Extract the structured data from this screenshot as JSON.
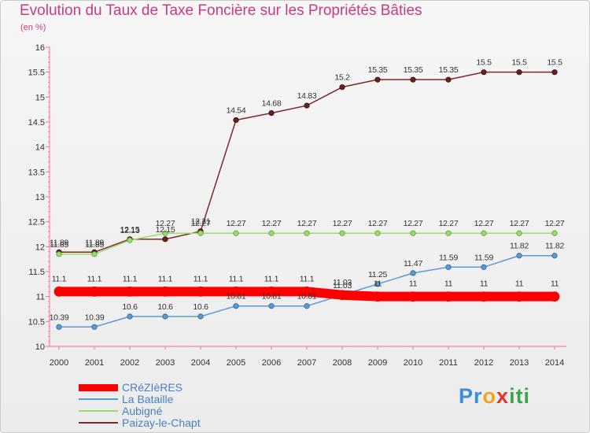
{
  "chart_data": {
    "type": "line",
    "title": "Evolution du Taux de Taxe Foncière sur les Propriétés Bâties",
    "ylabel": "(en %)",
    "xlabel": "",
    "x": [
      "2000",
      "2001",
      "2002",
      "2003",
      "2004",
      "2005",
      "2006",
      "2007",
      "2008",
      "2009",
      "2010",
      "2011",
      "2012",
      "2013",
      "2014"
    ],
    "ylim": [
      10,
      16
    ],
    "yticks": [
      "10",
      "10.5",
      "11",
      "11.5",
      "12",
      "12.5",
      "13",
      "13.5",
      "14",
      "14.5",
      "15",
      "15.5",
      "16"
    ],
    "grid": false,
    "legend_position": "bottom-left",
    "series": [
      {
        "name": "CRéZIèRES",
        "color": "#ff0000",
        "values": [
          11.1,
          11.1,
          11.1,
          11.1,
          11.1,
          11.1,
          11.1,
          11.1,
          11.03,
          11,
          11,
          11,
          11,
          11,
          11
        ],
        "labels": [
          "11.1",
          "11.1",
          "11.1",
          "11.1",
          "11.1",
          "11.1",
          "11.1",
          "11.1",
          "11.03",
          "11",
          "11",
          "11",
          "11",
          "11",
          "11"
        ]
      },
      {
        "name": "La Bataille",
        "color": "#5b9bd5",
        "values": [
          10.39,
          10.39,
          10.6,
          10.6,
          10.6,
          10.81,
          10.81,
          10.81,
          11.03,
          11.25,
          11.47,
          11.59,
          11.59,
          11.82,
          11.82
        ],
        "labels": [
          "10.39",
          "10.39",
          "10.6",
          "10.6",
          "10.6",
          "10.81",
          "10.81",
          "10.81",
          "11.03",
          "11.25",
          "11.47",
          "11.59",
          "11.59",
          "11.82",
          "11.82"
        ]
      },
      {
        "name": "Aubigné",
        "color": "#99dd66",
        "values": [
          11.85,
          11.85,
          12.13,
          12.27,
          12.27,
          12.27,
          12.27,
          12.27,
          12.27,
          12.27,
          12.27,
          12.27,
          12.27,
          12.27,
          12.27
        ],
        "labels": [
          "11.85",
          "11.85",
          "12.13",
          "12.27",
          "12.27",
          "12.27",
          "12.27",
          "12.27",
          "12.27",
          "12.27",
          "12.27",
          "12.27",
          "12.27",
          "12.27",
          "12.27"
        ]
      },
      {
        "name": "Paizay-le-Chapt",
        "color": "#7a2a2a",
        "values": [
          11.89,
          11.89,
          12.15,
          12.15,
          12.31,
          14.54,
          14.68,
          14.83,
          15.2,
          15.35,
          15.35,
          15.35,
          15.5,
          15.5,
          15.5
        ],
        "labels": [
          "11.89",
          "11.89",
          "12.15",
          "12.15",
          "12.31",
          "14.54",
          "14.68",
          "14.83",
          "15.2",
          "15.35",
          "15.35",
          "15.35",
          "15.5",
          "15.5",
          "15.5"
        ]
      }
    ]
  },
  "logo": {
    "p1": "Pr",
    "p2": "o",
    "p3": "x",
    "p4": "iti"
  }
}
